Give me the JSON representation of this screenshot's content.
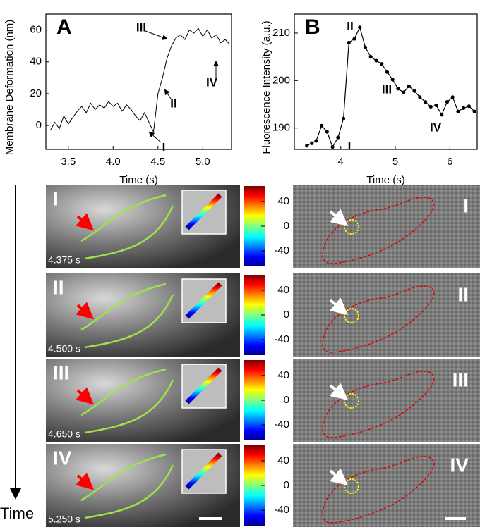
{
  "chart_data": [
    {
      "type": "line",
      "x_label": "Time (s)",
      "y_label": "Membrane Deformation (nm)",
      "color": "#000000",
      "x": [
        3.3,
        3.35,
        3.4,
        3.45,
        3.5,
        3.55,
        3.6,
        3.65,
        3.7,
        3.75,
        3.8,
        3.85,
        3.9,
        3.95,
        4.0,
        4.05,
        4.1,
        4.15,
        4.2,
        4.25,
        4.3,
        4.35,
        4.4,
        4.45,
        4.5,
        4.55,
        4.6,
        4.65,
        4.7,
        4.75,
        4.8,
        4.85,
        4.9,
        4.95,
        5.0,
        5.05,
        5.1,
        5.15,
        5.2,
        5.25,
        5.3
      ],
      "values": [
        -3,
        2,
        -2,
        6,
        1,
        5,
        9,
        12,
        8,
        14,
        10,
        13,
        11,
        15,
        12,
        14,
        9,
        13,
        10,
        6,
        3,
        8,
        2,
        -4,
        20,
        30,
        42,
        50,
        55,
        57,
        54,
        60,
        58,
        61,
        56,
        60,
        55,
        57,
        52,
        54,
        51
      ],
      "xlim": [
        3.25,
        5.32
      ],
      "ylim": [
        -15,
        70
      ],
      "xticks": [
        3.5,
        {
          "value": 4.0,
          "label": "4.0"
        },
        4.5,
        {
          "value": 5.0,
          "label": "5.0"
        }
      ],
      "yticks": [
        0,
        20,
        40,
        60
      ],
      "annotations": [
        "I",
        "II",
        "III",
        "IV"
      ]
    },
    {
      "type": "line_markers",
      "x_label": "Time (s)",
      "y_label": "Fluorescence Intensity (a.u.)",
      "color": "#000000",
      "x": [
        3.38,
        3.47,
        3.55,
        3.65,
        3.75,
        3.85,
        3.95,
        4.05,
        4.15,
        4.25,
        4.35,
        4.45,
        4.55,
        4.65,
        4.75,
        4.85,
        4.95,
        5.05,
        5.15,
        5.25,
        5.35,
        5.45,
        5.55,
        5.65,
        5.75,
        5.85,
        5.95,
        6.05,
        6.15,
        6.25,
        6.35,
        6.45
      ],
      "values": [
        186.3,
        186.8,
        187.3,
        190.5,
        189.2,
        186,
        188,
        192,
        208,
        208.8,
        211.2,
        207,
        205,
        204.2,
        203.5,
        201.8,
        200.2,
        198.3,
        197.5,
        198.8,
        197.8,
        196.5,
        195.5,
        194.5,
        194.8,
        192.8,
        195.5,
        196.5,
        193.5,
        194.2,
        194.6,
        193.5
      ],
      "xlim": [
        3.15,
        6.5
      ],
      "ylim": [
        185.5,
        214
      ],
      "xticks": [
        4,
        5,
        6
      ],
      "yticks": [
        190,
        200,
        210
      ],
      "annotations": [
        "I",
        "II",
        "III",
        "IV"
      ]
    }
  ],
  "panel_letters": [
    "A",
    "B"
  ],
  "time_axis_label": "Time",
  "image_rows": [
    {
      "label": "I",
      "time": "4.375 s"
    },
    {
      "label": "II",
      "time": "4.500 s"
    },
    {
      "label": "III",
      "time": "4.650 s"
    },
    {
      "label": "IV",
      "time": "5.250 s"
    }
  ],
  "colorbar_lim": [
    -65,
    65
  ],
  "colorbar_ticks": [
    40,
    0,
    -40
  ]
}
